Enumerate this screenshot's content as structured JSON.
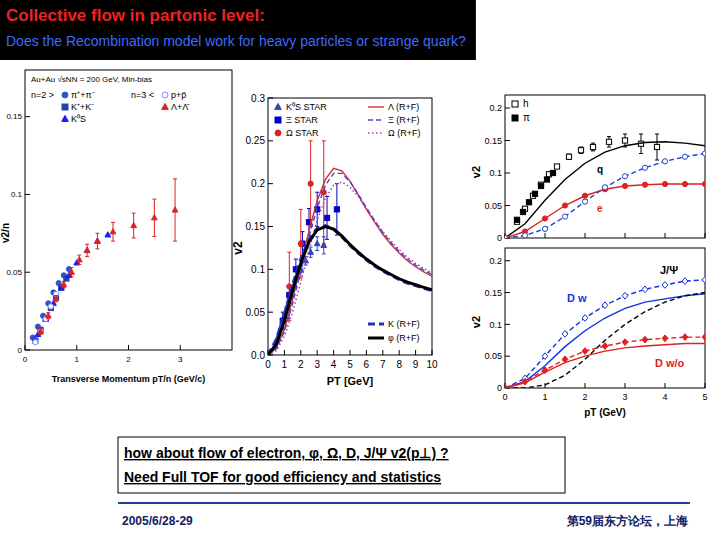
{
  "header": {
    "title": "Collective flow in partonic level:",
    "subtitle": "Does the Recombination model work for heavy particles or strange quark?"
  },
  "chart_data": [
    {
      "type": "scatter",
      "subtitle": "Au+Au √sNN = 200 GeV, Min-bias",
      "annotations": [
        "n=2 >",
        "n=3 <"
      ],
      "x_label": "Transverse Momentum pT/n (GeV/c)",
      "y_label": "v2/n",
      "xlim": [
        0,
        4
      ],
      "ylim": [
        0,
        0.18
      ],
      "xticks": [
        0,
        1,
        2,
        3
      ],
      "yticks": [
        0,
        0.05,
        0.1,
        0.15
      ],
      "grid": false,
      "legend": "upper left",
      "series": [
        {
          "name": "π⁺+π⁻",
          "color": "#3355cc",
          "marker": "circle",
          "x": [
            0.15,
            0.25,
            0.35,
            0.45,
            0.55,
            0.65,
            0.75,
            0.85
          ],
          "values": [
            0.008,
            0.015,
            0.022,
            0.03,
            0.037,
            0.043,
            0.048,
            0.052
          ]
        },
        {
          "name": "K⁺+K⁻",
          "color": "#2244aa",
          "marker": "square",
          "x": [
            0.2,
            0.3,
            0.4,
            0.5,
            0.6,
            0.7,
            0.8
          ],
          "values": [
            0.006,
            0.013,
            0.02,
            0.027,
            0.034,
            0.04,
            0.046
          ]
        },
        {
          "name": "K⁰S",
          "color": "#1a1aff",
          "marker": "triangle",
          "x": [
            0.25,
            0.4,
            0.55,
            0.7,
            0.85,
            1.0,
            1.2,
            1.4,
            1.6
          ],
          "values": [
            0.01,
            0.02,
            0.03,
            0.04,
            0.048,
            0.056,
            0.064,
            0.07,
            0.074
          ]
        },
        {
          "name": "p+p̄",
          "color": "#8888ff",
          "marker": "open-circle",
          "x": [
            0.2,
            0.3,
            0.4,
            0.5,
            0.6
          ],
          "values": [
            0.005,
            0.012,
            0.02,
            0.028,
            0.036
          ]
        },
        {
          "name": "Λ+Λ̄",
          "color": "#dd2222",
          "marker": "triangle",
          "x": [
            0.3,
            0.45,
            0.6,
            0.75,
            0.9,
            1.05,
            1.2,
            1.4,
            1.7,
            2.1,
            2.5,
            2.9
          ],
          "values": [
            0.012,
            0.022,
            0.033,
            0.042,
            0.05,
            0.058,
            0.064,
            0.07,
            0.076,
            0.08,
            0.085,
            0.09
          ],
          "errors": [
            0.002,
            0.002,
            0.002,
            0.002,
            0.003,
            0.003,
            0.004,
            0.005,
            0.006,
            0.008,
            0.012,
            0.02
          ]
        }
      ]
    },
    {
      "type": "line",
      "x_label": "PT [GeV]",
      "y_label": "v2",
      "xlim": [
        0,
        10
      ],
      "ylim": [
        0,
        0.3
      ],
      "xticks": [
        0,
        1,
        2,
        3,
        4,
        5,
        6,
        7,
        8,
        9,
        10
      ],
      "yticks": [
        {
          "value": 0,
          "label": "0.0"
        },
        0.05,
        0.1,
        0.15,
        0.2,
        0.25,
        0.3
      ],
      "grid": false,
      "legend": "upper left",
      "series": [
        {
          "name": "K⁰S STAR",
          "type": "scatter",
          "color": "#3344bb",
          "marker": "triangle",
          "x": [
            0.4,
            0.6,
            0.8,
            1.0,
            1.2,
            1.4,
            1.6,
            1.8,
            2.0,
            2.3,
            2.6,
            3.0,
            3.4
          ],
          "values": [
            0.01,
            0.02,
            0.033,
            0.045,
            0.058,
            0.07,
            0.082,
            0.092,
            0.1,
            0.11,
            0.12,
            0.13,
            0.128
          ],
          "errors": [
            0.002,
            0.002,
            0.002,
            0.002,
            0.003,
            0.003,
            0.003,
            0.004,
            0.004,
            0.005,
            0.006,
            0.008,
            0.01
          ]
        },
        {
          "name": "Ξ STAR",
          "type": "scatter",
          "color": "#0000cc",
          "marker": "square",
          "x": [
            0.9,
            1.3,
            1.7,
            2.1,
            2.5,
            3.0,
            3.6,
            4.2
          ],
          "values": [
            0.04,
            0.07,
            0.1,
            0.13,
            0.155,
            0.17,
            0.16,
            0.17
          ],
          "errors": [
            0.01,
            0.01,
            0.012,
            0.014,
            0.016,
            0.02,
            0.025,
            0.03
          ]
        },
        {
          "name": "Ω STAR",
          "type": "scatter",
          "color": "#dd2222",
          "marker": "circle",
          "x": [
            1.3,
            2.0,
            2.6,
            3.4
          ],
          "values": [
            0.08,
            0.13,
            0.2,
            0.19
          ],
          "errors": [
            0.04,
            0.04,
            0.05,
            0.06
          ]
        },
        {
          "name": "Λ (R+F)",
          "color": "#cc3333",
          "line_style": "solid",
          "x": [
            0,
            0.5,
            1,
            1.5,
            2,
            2.5,
            3,
            3.5,
            4,
            4.5,
            5,
            5.5,
            6,
            6.5,
            7,
            7.5,
            8,
            8.5,
            9,
            9.5,
            10
          ],
          "values": [
            0,
            0.008,
            0.03,
            0.065,
            0.105,
            0.145,
            0.18,
            0.205,
            0.218,
            0.215,
            0.203,
            0.187,
            0.17,
            0.155,
            0.141,
            0.129,
            0.119,
            0.11,
            0.103,
            0.097,
            0.092
          ]
        },
        {
          "name": "Ξ (R+F)",
          "color": "#4444dd",
          "line_style": "dashed",
          "x": [
            0,
            0.5,
            1,
            1.5,
            2,
            2.5,
            3,
            3.5,
            4,
            4.5,
            5,
            5.5,
            6,
            6.5,
            7,
            7.5,
            8,
            8.5,
            9,
            9.5,
            10
          ],
          "values": [
            0,
            0.007,
            0.027,
            0.06,
            0.098,
            0.138,
            0.172,
            0.198,
            0.212,
            0.212,
            0.202,
            0.188,
            0.172,
            0.157,
            0.143,
            0.131,
            0.121,
            0.112,
            0.105,
            0.099,
            0.094
          ]
        },
        {
          "name": "Ω (R+F)",
          "color": "#aa44aa",
          "line_style": "dotted",
          "x": [
            0,
            0.5,
            1,
            1.5,
            2,
            2.5,
            3,
            3.5,
            4,
            4.5,
            5,
            5.5,
            6,
            6.5,
            7,
            7.5,
            8,
            8.5,
            9,
            9.5,
            10
          ],
          "values": [
            0,
            0.005,
            0.022,
            0.05,
            0.085,
            0.122,
            0.157,
            0.183,
            0.198,
            0.202,
            0.196,
            0.185,
            0.171,
            0.157,
            0.144,
            0.133,
            0.123,
            0.114,
            0.107,
            0.101,
            0.096
          ]
        },
        {
          "name": "K (R+F)",
          "color": "#2233bb",
          "line_style": "thick-dashed",
          "x": [
            0,
            0.5,
            1,
            1.5,
            2,
            2.5,
            3,
            3.5,
            4,
            4.5,
            5,
            5.5,
            6,
            6.5,
            7,
            7.5,
            8,
            8.5,
            9,
            9.5,
            10
          ],
          "values": [
            0,
            0.018,
            0.048,
            0.082,
            0.112,
            0.135,
            0.148,
            0.151,
            0.147,
            0.138,
            0.128,
            0.119,
            0.111,
            0.104,
            0.098,
            0.093,
            0.088,
            0.084,
            0.081,
            0.078,
            0.075
          ]
        },
        {
          "name": "φ (R+F)",
          "color": "#000000",
          "line_style": "thick",
          "x": [
            0,
            0.5,
            1,
            1.5,
            2,
            2.5,
            3,
            3.5,
            4,
            4.5,
            5,
            5.5,
            6,
            6.5,
            7,
            7.5,
            8,
            8.5,
            9,
            9.5,
            10
          ],
          "values": [
            0,
            0.012,
            0.04,
            0.075,
            0.107,
            0.132,
            0.146,
            0.15,
            0.147,
            0.139,
            0.129,
            0.12,
            0.112,
            0.105,
            0.099,
            0.094,
            0.089,
            0.085,
            0.082,
            0.079,
            0.076
          ]
        }
      ]
    },
    {
      "type": "line",
      "y_label": "v2",
      "xlim": [
        0,
        5
      ],
      "ylim": [
        0,
        0.22
      ],
      "xticks": [
        0,
        1,
        2,
        3,
        4,
        5
      ],
      "yticks": [
        0,
        0.05,
        0.1,
        0.15,
        0.2
      ],
      "tick_labels": "y",
      "grid": false,
      "legend": "upper left",
      "series": [
        {
          "name": "h",
          "type": "scatter",
          "color": "#000000",
          "marker": "open-square",
          "x": [
            0.3,
            0.5,
            0.7,
            0.9,
            1.1,
            1.3,
            1.6,
            1.9,
            2.2,
            2.6,
            3.0,
            3.4,
            3.8
          ],
          "values": [
            0.025,
            0.045,
            0.065,
            0.082,
            0.098,
            0.11,
            0.125,
            0.135,
            0.14,
            0.148,
            0.15,
            0.145,
            0.14
          ],
          "errors": [
            0.002,
            0.002,
            0.002,
            0.003,
            0.003,
            0.003,
            0.004,
            0.005,
            0.006,
            0.008,
            0.01,
            0.015,
            0.02
          ]
        },
        {
          "name": "π",
          "type": "scatter",
          "color": "#000000",
          "marker": "square",
          "x": [
            0.3,
            0.45,
            0.6,
            0.75,
            0.9,
            1.05,
            1.2
          ],
          "values": [
            0.028,
            0.04,
            0.055,
            0.068,
            0.08,
            0.09,
            0.1
          ]
        },
        {
          "name": "q",
          "color": "#000000",
          "line_style": "solid",
          "x": [
            0,
            0.5,
            1,
            1.5,
            2,
            2.5,
            3,
            3.5,
            4,
            4.5,
            5
          ],
          "values": [
            0,
            0.022,
            0.058,
            0.09,
            0.115,
            0.132,
            0.142,
            0.147,
            0.148,
            0.146,
            0.142
          ]
        },
        {
          "name": "e",
          "color": "#dd2222",
          "line_style": "solid",
          "marker": "circle",
          "x": [
            0,
            0.5,
            1,
            1.5,
            2,
            2.5,
            3,
            3.5,
            4,
            4.5,
            5
          ],
          "values": [
            0,
            0.01,
            0.03,
            0.05,
            0.065,
            0.075,
            0.08,
            0.082,
            0.083,
            0.083,
            0.083
          ]
        },
        {
          "color": "#2244cc",
          "line_style": "dashed",
          "marker": "open-circle",
          "x": [
            0,
            0.5,
            1,
            1.5,
            2,
            2.5,
            3,
            3.5,
            4,
            4.5,
            5
          ],
          "values": [
            0,
            0.004,
            0.014,
            0.033,
            0.056,
            0.078,
            0.095,
            0.108,
            0.118,
            0.125,
            0.13
          ]
        }
      ]
    },
    {
      "type": "line",
      "x_label": "pT (GeV)",
      "y_label": "v2",
      "xlim": [
        0,
        5
      ],
      "ylim": [
        0,
        0.22
      ],
      "xticks": [
        0,
        1,
        2,
        3,
        4,
        5
      ],
      "yticks": [
        0,
        0.05,
        0.1,
        0.15,
        0.2
      ],
      "grid": false,
      "series": [
        {
          "name": "D w",
          "color": "#1133dd",
          "line_style": "solid",
          "x": [
            0,
            0.5,
            1,
            1.5,
            2,
            2.5,
            3,
            3.5,
            4,
            4.5,
            5
          ],
          "values": [
            0,
            0.01,
            0.035,
            0.065,
            0.09,
            0.11,
            0.125,
            0.135,
            0.14,
            0.145,
            0.148
          ]
        },
        {
          "color": "#1133dd",
          "line_style": "dashed",
          "marker": "open-diamond",
          "x": [
            0,
            0.5,
            1,
            1.5,
            2,
            2.5,
            3,
            3.5,
            4,
            4.5,
            5
          ],
          "values": [
            0,
            0.015,
            0.05,
            0.085,
            0.11,
            0.13,
            0.145,
            0.155,
            0.162,
            0.168,
            0.17
          ]
        },
        {
          "name": "J/Ψ",
          "color": "#000000",
          "line_style": "dashed",
          "x": [
            0,
            0.5,
            1,
            1.5,
            2,
            2.5,
            3,
            3.5,
            4,
            4.5,
            5
          ],
          "values": [
            0,
            0,
            0.005,
            0.02,
            0.045,
            0.075,
            0.1,
            0.12,
            0.135,
            0.145,
            0.15
          ]
        },
        {
          "name": "D w/o",
          "color": "#dd2222",
          "line_style": "solid",
          "x": [
            0,
            0.5,
            1,
            1.5,
            2,
            2.5,
            3,
            3.5,
            4,
            4.5,
            5
          ],
          "values": [
            0,
            0.008,
            0.025,
            0.04,
            0.05,
            0.058,
            0.063,
            0.066,
            0.068,
            0.07,
            0.07
          ]
        },
        {
          "color": "#dd2222",
          "line_style": "dashed",
          "marker": "diamond",
          "x": [
            0,
            0.5,
            1,
            1.5,
            2,
            2.5,
            3,
            3.5,
            4,
            4.5,
            5
          ],
          "values": [
            0,
            0.01,
            0.028,
            0.045,
            0.058,
            0.066,
            0.072,
            0.076,
            0.078,
            0.08,
            0.08
          ]
        }
      ]
    }
  ],
  "note": {
    "lines": [
      "how about flow of electron, φ, Ω, D, J/Ψ  v2(p⊥) ?",
      "Need Full TOF for good efficiency and statistics"
    ]
  },
  "footer": {
    "date": "2005/6/28-29",
    "event": "第59届东方论坛，上海"
  }
}
